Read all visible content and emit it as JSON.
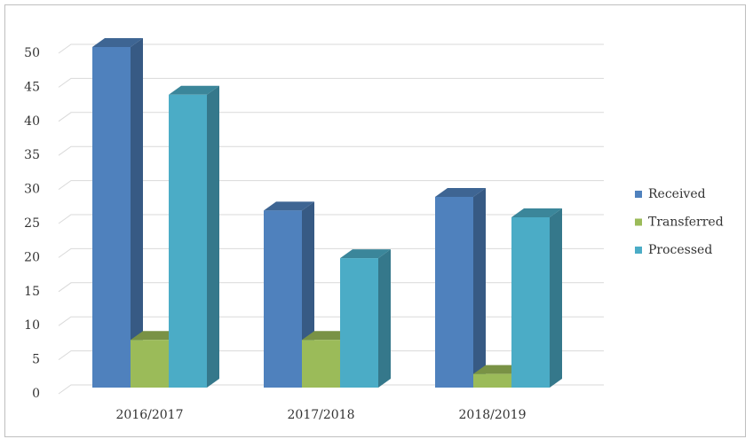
{
  "chart_data": {
    "type": "bar3d",
    "categories": [
      "2016/2017",
      "2017/2018",
      "2018/2019"
    ],
    "series": [
      {
        "name": "Received",
        "color": "#4f81bd",
        "values": [
          50,
          26,
          28
        ]
      },
      {
        "name": "Transferred",
        "color": "#9bbb59",
        "values": [
          7,
          7,
          2
        ]
      },
      {
        "name": "Processed",
        "color": "#4bacc6",
        "values": [
          43,
          19,
          25
        ]
      }
    ],
    "ylim": [
      0,
      50
    ],
    "yticks": [
      0,
      5,
      10,
      15,
      20,
      25,
      30,
      35,
      40,
      45,
      50
    ],
    "grid": true,
    "legend": "right"
  }
}
